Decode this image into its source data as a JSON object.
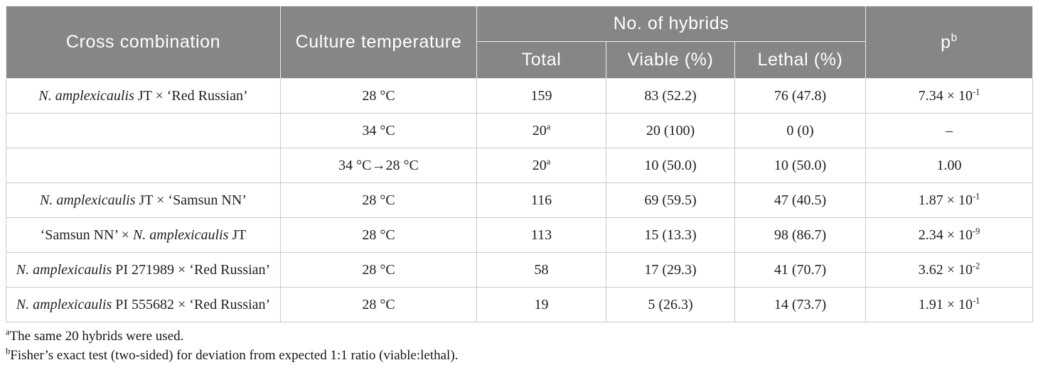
{
  "colors": {
    "header_bg": "#868686",
    "header_text": "#ffffff",
    "body_border": "#c9c9c9",
    "body_text": "#1f1f1f"
  },
  "table": {
    "header": {
      "cross_combination": "Cross combination",
      "culture_temperature": "Culture temperature",
      "no_of_hybrids": "No. of hybrids",
      "total": "Total",
      "viable": "Viable (%)",
      "lethal": "Lethal (%)",
      "p_base": "p",
      "p_sup": "b"
    },
    "rows": [
      {
        "cross": [
          {
            "t": "N. amplexicaulis",
            "i": true
          },
          {
            "t": " JT × ‘Red Russian’",
            "i": false
          }
        ],
        "temp": "28 °C",
        "total": {
          "t": "159",
          "sup": ""
        },
        "viable": "83 (52.2)",
        "lethal": "76 (47.8)",
        "p": {
          "t": "7.34 × 10",
          "sup": "-1"
        }
      },
      {
        "cross": [],
        "temp": "34 °C",
        "total": {
          "t": "20",
          "sup": "a"
        },
        "viable": "20 (100)",
        "lethal": "0 (0)",
        "p": {
          "t": "–",
          "sup": ""
        }
      },
      {
        "cross": [],
        "temp": "34 °C→28 °C",
        "total": {
          "t": "20",
          "sup": "a"
        },
        "viable": "10 (50.0)",
        "lethal": "10 (50.0)",
        "p": {
          "t": "1.00",
          "sup": ""
        }
      },
      {
        "cross": [
          {
            "t": "N. amplexicaulis",
            "i": true
          },
          {
            "t": " JT × ‘Samsun NN’",
            "i": false
          }
        ],
        "temp": "28 °C",
        "total": {
          "t": "116",
          "sup": ""
        },
        "viable": "69 (59.5)",
        "lethal": "47 (40.5)",
        "p": {
          "t": "1.87 × 10",
          "sup": "-1"
        }
      },
      {
        "cross": [
          {
            "t": "‘Samsun NN’ × ",
            "i": false
          },
          {
            "t": "N. amplexicaulis",
            "i": true
          },
          {
            "t": " JT",
            "i": false
          }
        ],
        "temp": "28 °C",
        "total": {
          "t": "113",
          "sup": ""
        },
        "viable": "15 (13.3)",
        "lethal": "98 (86.7)",
        "p": {
          "t": "2.34 × 10",
          "sup": "-9"
        }
      },
      {
        "cross": [
          {
            "t": "N. amplexicaulis",
            "i": true
          },
          {
            "t": " PI 271989 × ‘Red Russian’",
            "i": false
          }
        ],
        "temp": "28 °C",
        "total": {
          "t": "58",
          "sup": ""
        },
        "viable": "17 (29.3)",
        "lethal": "41 (70.7)",
        "p": {
          "t": "3.62 × 10",
          "sup": "-2"
        }
      },
      {
        "cross": [
          {
            "t": "N. amplexicaulis",
            "i": true
          },
          {
            "t": " PI 555682 × ‘Red Russian’",
            "i": false
          }
        ],
        "temp": "28 °C",
        "total": {
          "t": "19",
          "sup": ""
        },
        "viable": "5 (26.3)",
        "lethal": "14 (73.7)",
        "p": {
          "t": "1.91 × 10",
          "sup": "-1"
        }
      }
    ]
  },
  "footnotes": [
    {
      "sup": "a",
      "text": "The same 20 hybrids were used."
    },
    {
      "sup": "b",
      "text": "Fisher’s exact test (two-sided) for deviation from expected 1:1 ratio (viable:lethal)."
    }
  ]
}
